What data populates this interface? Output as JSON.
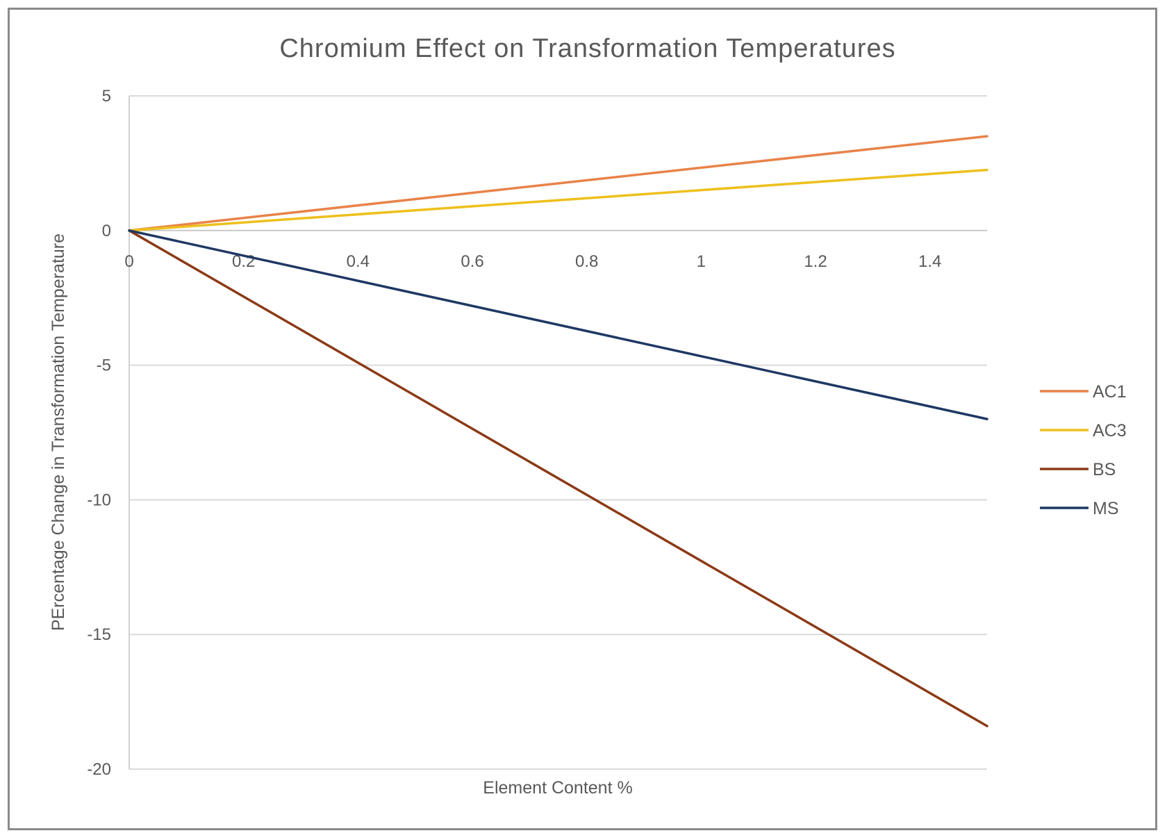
{
  "chart_data": {
    "type": "line",
    "title": "Chromium Effect on Transformation Temperatures",
    "xlabel": "Element Content %",
    "ylabel": "PErcentage Change in Transformation Temperature",
    "xlim": [
      0,
      1.5
    ],
    "ylim": [
      -20,
      5
    ],
    "xticks": [
      0,
      0.2,
      0.4,
      0.6,
      0.8,
      1,
      1.2,
      1.4
    ],
    "xtick_labels": [
      "0",
      "0.2",
      "0.4",
      "0.6",
      "0.8",
      "1",
      "1.2",
      "1.4"
    ],
    "yticks": [
      5,
      0,
      -5,
      -10,
      -15,
      -20
    ],
    "ytick_labels": [
      "5",
      "0",
      "-5",
      "-10",
      "-15",
      "-20"
    ],
    "grid": "horizontal",
    "legend_position": "right",
    "series": [
      {
        "name": "AC1",
        "color": "#E8834A",
        "x": [
          0,
          1.5
        ],
        "y": [
          0,
          3.5
        ]
      },
      {
        "name": "AC3",
        "color": "#EDC01C",
        "x": [
          0,
          1.5
        ],
        "y": [
          0,
          2.25
        ]
      },
      {
        "name": "BS",
        "color": "#8B3A16",
        "x": [
          0,
          1.5
        ],
        "y": [
          0,
          -18.4
        ]
      },
      {
        "name": "MS",
        "color": "#1F3864",
        "x": [
          0,
          1.5
        ],
        "y": [
          0,
          -7.0
        ]
      }
    ]
  }
}
